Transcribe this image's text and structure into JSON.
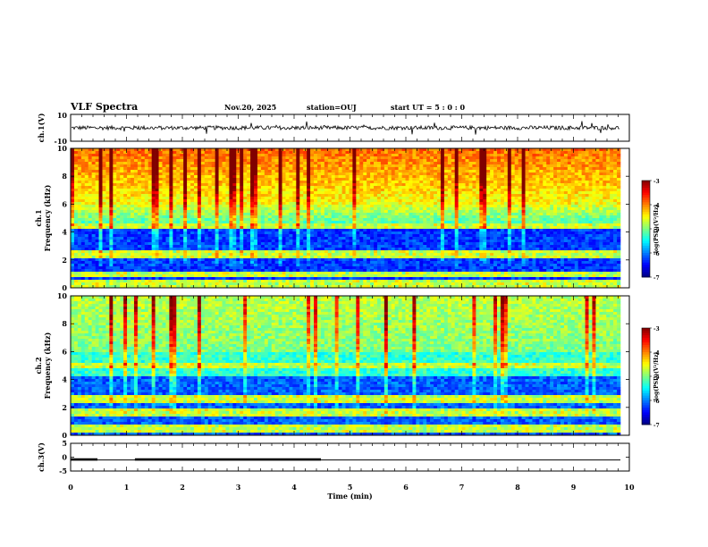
{
  "header": {
    "title": "VLF Spectra",
    "date": "Nov.20, 2025",
    "station": "station=OUJ",
    "start": "start  UT =   5  : 0  : 0"
  },
  "chart_data": [
    {
      "type": "line",
      "name": "ch1-waveform",
      "ylabel": "ch.1(V)",
      "ylim": [
        -10,
        10
      ],
      "yticklabels": [
        "10",
        "-10"
      ],
      "xlim": [
        0,
        10
      ],
      "baseline": 0,
      "noise_amplitude": 1.5,
      "spike_amplitude": 4
    },
    {
      "type": "heatmap",
      "name": "ch1-spectrogram",
      "ylabel": "ch.1\nFrequency (kHz)",
      "ylabel_lines": [
        "ch.1",
        "Frequency (kHz)"
      ],
      "ylim": [
        0,
        10
      ],
      "yticklabels": [
        "0",
        "2",
        "4",
        "6",
        "8",
        "10"
      ],
      "xlim": [
        0,
        10
      ],
      "colorbar": {
        "label": "log(PSD)(V²/Hz)",
        "range": [
          -7,
          -3
        ],
        "ticklabels": [
          "-7",
          "-6",
          "-5",
          "-4",
          "-3"
        ]
      },
      "bands_khz": [
        0.3,
        1.0,
        2.4,
        4.4
      ]
    },
    {
      "type": "heatmap",
      "name": "ch2-spectrogram",
      "ylabel": "ch.2\nFrequency (kHz)",
      "ylabel_lines": [
        "ch.2",
        "Frequency (kHz)"
      ],
      "ylim": [
        0,
        10
      ],
      "yticklabels": [
        "0",
        "2",
        "4",
        "6",
        "8",
        "10"
      ],
      "xlim": [
        0,
        10
      ],
      "colorbar": {
        "label": "log(PSD)(V²/Hz)",
        "range": [
          -7,
          -3
        ],
        "ticklabels": [
          "-7",
          "-6",
          "-5",
          "-4",
          "-3"
        ]
      },
      "bands_khz": [
        0.5,
        1.6,
        2.6,
        5.0
      ]
    },
    {
      "type": "line",
      "name": "ch3-signal",
      "ylabel": "ch.3(V)",
      "ylim": [
        -5,
        5
      ],
      "yticklabels": [
        "5",
        "0",
        "-5"
      ],
      "xlim": [
        0,
        10
      ],
      "xlabel": "Time (min)",
      "xticklabels": [
        "0",
        "1",
        "2",
        "3",
        "4",
        "5",
        "6",
        "7",
        "8",
        "9",
        "10"
      ],
      "level": -1,
      "thick_segments": [
        [
          0,
          0.48
        ],
        [
          1.15,
          4.48
        ]
      ]
    }
  ]
}
